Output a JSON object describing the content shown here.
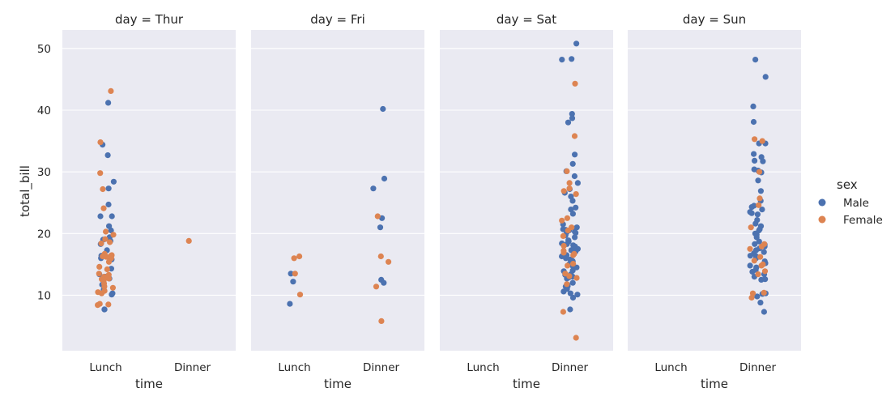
{
  "chart_data": {
    "type": "scatter",
    "kind": "faceted strip plot",
    "y_axis": {
      "label": "total_bill",
      "range": [
        1,
        53
      ],
      "ticks": [
        10,
        20,
        30,
        40,
        50
      ]
    },
    "x_axis": {
      "label": "time",
      "categories": [
        "Lunch",
        "Dinner"
      ]
    },
    "grid": true,
    "legend": {
      "title": "sex",
      "position": "right",
      "entries": [
        {
          "name": "Male",
          "color": "#4c72b0"
        },
        {
          "name": "Female",
          "color": "#dd8452"
        }
      ]
    },
    "colors": {
      "Male": "#4c72b0",
      "Female": "#dd8452",
      "panel_bg": "#eaeaf2",
      "grid": "#ffffff"
    },
    "facets": [
      {
        "title": "day = Thur",
        "series": [
          {
            "name": "Male",
            "category": "Lunch",
            "values": [
              41.2,
              34.4,
              32.7,
              28.4,
              27.3,
              24.7,
              22.8,
              22.8,
              21.2,
              20.5,
              19.4,
              19.0,
              18.8,
              18.3,
              17.3,
              16.4,
              16.0,
              15.9,
              15.8,
              14.3,
              13.4,
              13.0,
              12.7,
              11.8,
              11.7,
              10.9,
              10.3,
              10.1,
              7.7,
              7.7
            ]
          },
          {
            "name": "Female",
            "category": "Lunch",
            "values": [
              43.1,
              34.8,
              29.8,
              27.2,
              24.1,
              20.3,
              19.8,
              19.1,
              18.6,
              18.4,
              16.7,
              16.5,
              16.4,
              16.3,
              16.2,
              16.0,
              15.4,
              14.6,
              14.2,
              13.5,
              13.3,
              13.0,
              12.7,
              12.6,
              12.4,
              11.9,
              11.4,
              11.2,
              10.7,
              10.5,
              10.3,
              8.6,
              8.5,
              8.4
            ]
          },
          {
            "name": "Female",
            "category": "Dinner",
            "values": [
              18.8
            ]
          }
        ]
      },
      {
        "title": "day = Fri",
        "series": [
          {
            "name": "Male",
            "category": "Lunch",
            "values": [
              13.5,
              12.2,
              8.6
            ]
          },
          {
            "name": "Female",
            "category": "Lunch",
            "values": [
              16.3,
              16.0,
              13.5,
              10.1
            ]
          },
          {
            "name": "Male",
            "category": "Dinner",
            "values": [
              40.2,
              28.9,
              27.3,
              22.5,
              21.0,
              12.5,
              12.0
            ]
          },
          {
            "name": "Female",
            "category": "Dinner",
            "values": [
              22.8,
              16.3,
              15.4,
              11.4,
              5.8
            ]
          }
        ]
      },
      {
        "title": "day = Sat",
        "series": [
          {
            "name": "Male",
            "category": "Dinner",
            "values": [
              50.8,
              48.3,
              48.2,
              39.4,
              38.7,
              38.0,
              32.8,
              31.3,
              30.1,
              29.3,
              28.2,
              27.2,
              26.6,
              26.0,
              25.3,
              24.2,
              23.9,
              23.2,
              21.5,
              21.0,
              20.7,
              20.6,
              20.5,
              20.3,
              20.2,
              20.1,
              19.7,
              19.4,
              18.9,
              18.7,
              18.4,
              18.3,
              18.1,
              17.9,
              17.8,
              17.5,
              17.3,
              17.1,
              16.5,
              16.3,
              16.0,
              15.8,
              15.6,
              15.5,
              15.4,
              15.1,
              14.8,
              14.5,
              14.0,
              13.9,
              13.4,
              13.3,
              13.0,
              12.9,
              12.7,
              12.0,
              11.7,
              11.5,
              11.4,
              11.0,
              10.6,
              10.3,
              10.1,
              9.6,
              7.7
            ]
          },
          {
            "name": "Female",
            "category": "Dinner",
            "values": [
              44.3,
              35.8,
              30.1,
              28.2,
              27.3,
              26.9,
              26.4,
              22.5,
              22.1,
              21.0,
              20.5,
              19.6,
              18.0,
              17.2,
              16.9,
              16.7,
              16.5,
              15.1,
              14.8,
              13.5,
              13.1,
              12.8,
              11.8,
              7.3,
              3.1
            ]
          }
        ]
      },
      {
        "title": "day = Sun",
        "series": [
          {
            "name": "Male",
            "category": "Dinner",
            "values": [
              48.2,
              45.4,
              40.6,
              38.1,
              34.6,
              34.6,
              32.9,
              32.4,
              31.8,
              31.7,
              30.4,
              30.2,
              29.9,
              28.6,
              26.9,
              25.3,
              24.5,
              24.3,
              23.9,
              23.5,
              23.3,
              23.1,
              22.2,
              21.6,
              21.2,
              20.7,
              20.5,
              20.0,
              19.8,
              19.4,
              18.7,
              18.3,
              18.2,
              17.9,
              17.6,
              17.3,
              17.0,
              16.8,
              16.4,
              16.3,
              16.0,
              15.5,
              15.2,
              14.8,
              14.5,
              14.1,
              13.8,
              13.4,
              13.0,
              12.6,
              12.5,
              10.3,
              10.2,
              9.8,
              8.8,
              7.3
            ]
          },
          {
            "name": "Female",
            "category": "Dinner",
            "values": [
              35.3,
              35.0,
              30.0,
              25.7,
              24.6,
              21.0,
              18.3,
              17.9,
              17.5,
              16.2,
              15.6,
              15.0,
              14.8,
              13.9,
              13.4,
              10.4,
              10.3,
              9.6
            ]
          }
        ]
      }
    ]
  }
}
